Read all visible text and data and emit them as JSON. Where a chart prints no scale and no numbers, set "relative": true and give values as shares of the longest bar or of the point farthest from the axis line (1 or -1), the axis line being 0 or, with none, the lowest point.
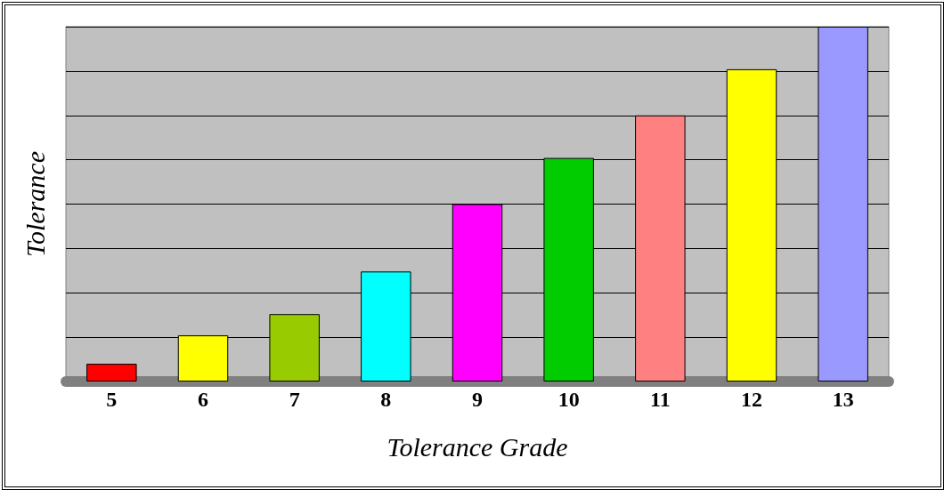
{
  "chart_data": {
    "type": "bar",
    "relative": true,
    "xlabel": "Tolerance Grade",
    "ylabel": "Tolerance",
    "categories": [
      "5",
      "6",
      "7",
      "8",
      "9",
      "10",
      "11",
      "12",
      "13"
    ],
    "values": [
      0.05,
      0.13,
      0.19,
      0.31,
      0.5,
      0.63,
      0.75,
      0.88,
      1
    ],
    "colors": [
      "#ff0000",
      "#ffff00",
      "#99cc00",
      "#00ffff",
      "#ff00ff",
      "#00cc00",
      "#ff8080",
      "#ffff00",
      "#9999ff"
    ],
    "grid": "y"
  }
}
